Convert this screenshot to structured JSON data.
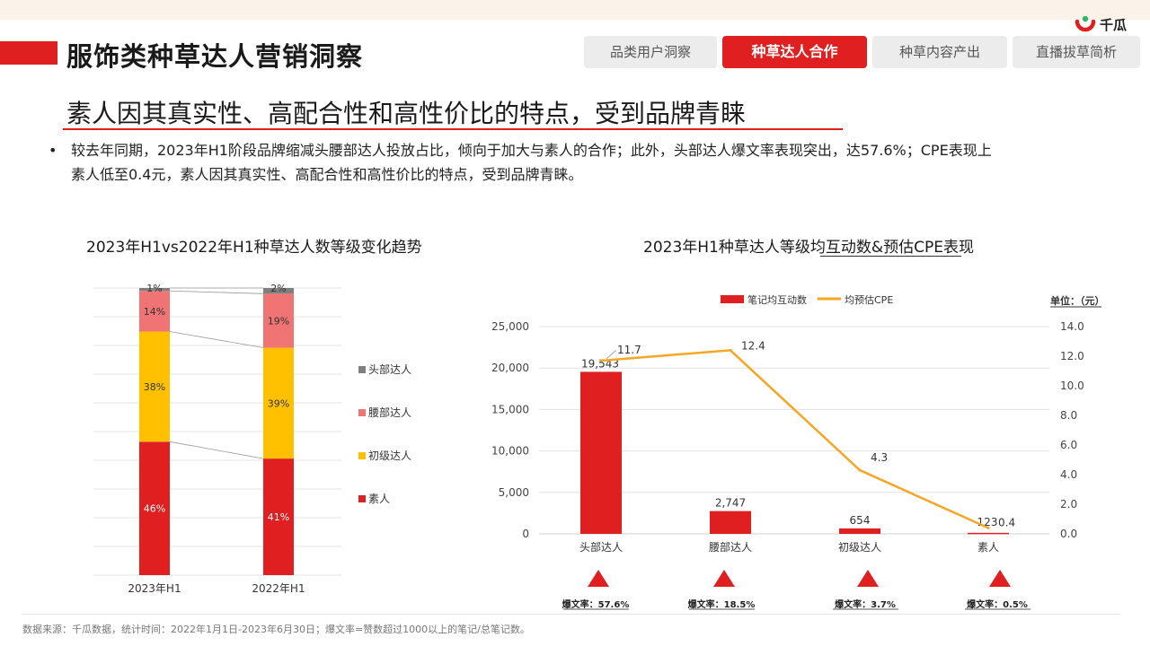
{
  "header": {
    "title": "服饰类种草达人营销洞察",
    "tabs": [
      {
        "label": "品类用户洞察",
        "active": false
      },
      {
        "label": "种草达人合作",
        "active": true
      },
      {
        "label": "种草内容产出",
        "active": false
      },
      {
        "label": "直播拔草简析",
        "active": false
      }
    ],
    "logo_text": "千瓜",
    "logo_icon": "qiangua-logo-icon"
  },
  "headline": "素人因其真实性、高配合性和高性价比的特点，受到品牌青睐",
  "bullet": "较去年同期，2023年H1阶段品牌缩减头腰部达人投放占比，倾向于加大与素人的合作；此外，头部达人爆文率表现突出，达57.6%；CPE表现上素人低至0.4元，素人因其真实性、高配合性和高性价比的特点，受到品牌青睐。",
  "chart_data": [
    {
      "type": "bar",
      "stacked": true,
      "percent": true,
      "title": "2023年H1vs2022年H1种草达人数等级变化趋势",
      "categories": [
        "2023年H1",
        "2022年H1"
      ],
      "series": [
        {
          "name": "素人",
          "values": [
            46,
            41
          ],
          "labels": [
            "46%",
            "41%"
          ],
          "color": "#e02020"
        },
        {
          "name": "初级达人",
          "values": [
            38,
            39
          ],
          "labels": [
            "38%",
            "39%"
          ],
          "color": "#ffc000"
        },
        {
          "name": "腰部达人",
          "values": [
            14,
            19
          ],
          "labels": [
            "14%",
            "19%"
          ],
          "color": "#f07474"
        },
        {
          "name": "头部达人",
          "values": [
            1,
            2
          ],
          "labels": [
            "1%",
            "2%"
          ],
          "color": "#7f7f7f"
        }
      ],
      "legend_order": [
        "头部达人",
        "腰部达人",
        "初级达人",
        "素人"
      ],
      "legend_position": "right",
      "grid": true
    },
    {
      "type": "bar",
      "combo": "bar+line",
      "title": "2023年H1种草达人等级均互动数&预估CPE表现",
      "categories": [
        "头部达人",
        "腰部达人",
        "初级达人",
        "素人"
      ],
      "series": [
        {
          "name": "笔记均互动数",
          "type": "bar",
          "axis": "left",
          "values": [
            19543,
            2747,
            654,
            123
          ],
          "labels": [
            "19,543",
            "2,747",
            "654",
            "123"
          ],
          "color": "#e02020"
        },
        {
          "name": "均预估CPE",
          "type": "line",
          "axis": "right",
          "values": [
            11.7,
            12.4,
            4.3,
            0.4
          ],
          "labels": [
            "11.7",
            "12.4",
            "4.3",
            "0.4"
          ],
          "color": "#f5a623"
        }
      ],
      "ylim_left": [
        0,
        25000
      ],
      "yticks_left": [
        "0",
        "5,000",
        "10,000",
        "15,000",
        "20,000",
        "25,000"
      ],
      "ylim_right": [
        0,
        14
      ],
      "yticks_right": [
        "0.0",
        "2.0",
        "4.0",
        "6.0",
        "8.0",
        "10.0",
        "12.0",
        "14.0"
      ],
      "unit_label": "单位：（元）",
      "legend_position": "top",
      "grid": true,
      "burst_rates": [
        {
          "label": "爆文率：57.6%",
          "value": 57.6
        },
        {
          "label": "爆文率：18.5%",
          "value": 18.5
        },
        {
          "label": "爆文率：3.7%",
          "value": 3.7
        },
        {
          "label": "爆文率：0.5%",
          "value": 0.5
        }
      ]
    }
  ],
  "footer": "数据来源：千瓜数据，统计时间：2022年1月1日-2023年6月30日；爆文率=赞数超过1000以上的笔记/总笔记数。"
}
